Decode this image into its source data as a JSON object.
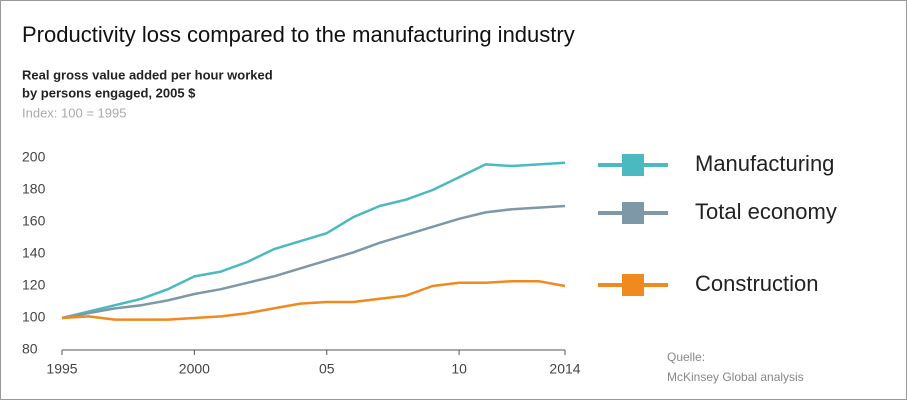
{
  "chart_data": {
    "type": "line",
    "title": "Productivity loss compared to the manufacturing industry",
    "subtitle": [
      "Real gross value added per hour worked",
      "by persons engaged, 2005 $"
    ],
    "index_note": "Index: 100 = 1995",
    "source": [
      "Quelle:",
      "McKinsey Global analysis"
    ],
    "x": [
      1995,
      1996,
      1997,
      1998,
      1999,
      2000,
      2001,
      2002,
      2003,
      2004,
      2005,
      2006,
      2007,
      2008,
      2009,
      2010,
      2011,
      2012,
      2013,
      2014
    ],
    "series": [
      {
        "name": "Manufacturing",
        "color": "#4bbac0",
        "values": [
          100,
          104,
          108,
          112,
          118,
          126,
          129,
          135,
          143,
          148,
          153,
          163,
          170,
          174,
          180,
          188,
          196,
          195,
          196,
          197
        ]
      },
      {
        "name": "Total economy",
        "color": "#7f98a8",
        "values": [
          100,
          103,
          106,
          108,
          111,
          115,
          118,
          122,
          126,
          131,
          136,
          141,
          147,
          152,
          157,
          162,
          166,
          168,
          169,
          170
        ]
      },
      {
        "name": "Construction",
        "color": "#f08a1e",
        "values": [
          100,
          101,
          99,
          99,
          99,
          100,
          101,
          103,
          106,
          109,
          110,
          110,
          112,
          114,
          120,
          122,
          122,
          123,
          123,
          120
        ]
      }
    ],
    "xlim": [
      1995,
      2014
    ],
    "xticks": [
      1995,
      2000,
      {
        "value": 2005,
        "label": "05"
      },
      {
        "value": 2010,
        "label": "10"
      },
      2014
    ],
    "ylim": [
      80,
      200
    ],
    "yticks": [
      80,
      100,
      120,
      140,
      160,
      180,
      200
    ],
    "grid": false
  }
}
